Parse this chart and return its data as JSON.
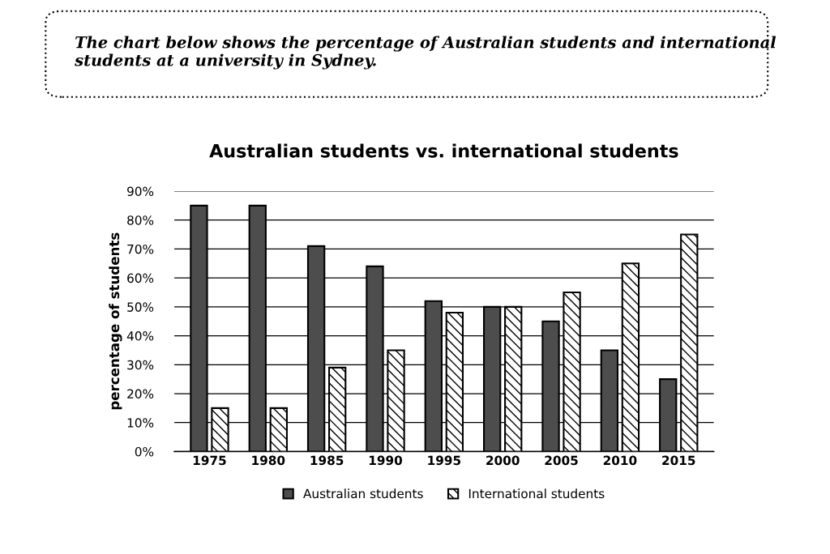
{
  "chart_data": {
    "type": "bar",
    "title": "Australian students vs. international students",
    "ylabel": "percentage of students",
    "annotations": [
      "The chart below shows the percentage of Australian students and international students at a university in Sydney."
    ],
    "categories": [
      "1975",
      "1980",
      "1985",
      "1990",
      "1995",
      "2000",
      "2005",
      "2010",
      "2015"
    ],
    "series": [
      {
        "name": "Australian students",
        "color": "#4d4d4d",
        "values": [
          85,
          85,
          71,
          64,
          52,
          50,
          45,
          35,
          25
        ]
      },
      {
        "name": "International students",
        "color": "#000000",
        "values": [
          15,
          15,
          29,
          35,
          48,
          50,
          55,
          65,
          75
        ]
      }
    ],
    "ylim": [
      0,
      90
    ],
    "yticks": [
      {
        "value": 0,
        "label": "0%"
      },
      {
        "value": 10,
        "label": "10%"
      },
      {
        "value": 20,
        "label": "20%"
      },
      {
        "value": 30,
        "label": "30%"
      },
      {
        "value": 40,
        "label": "40%"
      },
      {
        "value": 50,
        "label": "50%"
      },
      {
        "value": 60,
        "label": "60%"
      },
      {
        "value": 70,
        "label": "70%"
      },
      {
        "value": 80,
        "label": "80%"
      },
      {
        "value": 90,
        "label": "90%"
      }
    ],
    "grid": "y",
    "legend": "bottom"
  }
}
